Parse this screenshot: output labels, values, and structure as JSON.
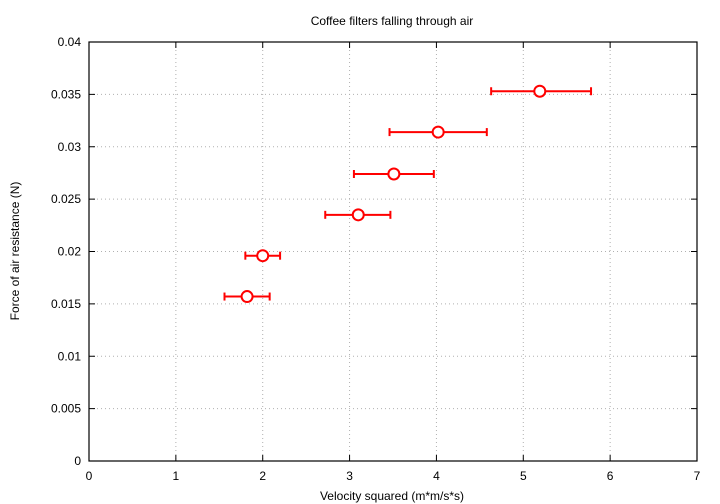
{
  "chart_data": {
    "type": "scatter",
    "title": "Coffee filters falling through air",
    "xlabel": "Velocity squared (m*m/s*s)",
    "ylabel": "Force of air resistance (N)",
    "xlim": [
      0,
      7
    ],
    "ylim": [
      0,
      0.04
    ],
    "xticks": [
      "0",
      "1",
      "2",
      "3",
      "4",
      "5",
      "6",
      "7"
    ],
    "yticks": [
      "0",
      "0.005",
      "0.01",
      "0.015",
      "0.02",
      "0.025",
      "0.03",
      "0.035",
      "0.04"
    ],
    "grid": true,
    "series": [
      {
        "name": "data",
        "color": "#ff0000",
        "marker": "open-circle",
        "points": [
          {
            "x": 1.82,
            "y": 0.0157,
            "xerr_low": 1.56,
            "xerr_high": 2.08
          },
          {
            "x": 2.0,
            "y": 0.0196,
            "xerr_low": 1.8,
            "xerr_high": 2.2
          },
          {
            "x": 3.1,
            "y": 0.0235,
            "xerr_low": 2.72,
            "xerr_high": 3.47
          },
          {
            "x": 3.51,
            "y": 0.0274,
            "xerr_low": 3.05,
            "xerr_high": 3.97
          },
          {
            "x": 4.02,
            "y": 0.0314,
            "xerr_low": 3.46,
            "xerr_high": 4.58
          },
          {
            "x": 5.19,
            "y": 0.0353,
            "xerr_low": 4.63,
            "xerr_high": 5.78
          }
        ]
      }
    ]
  }
}
